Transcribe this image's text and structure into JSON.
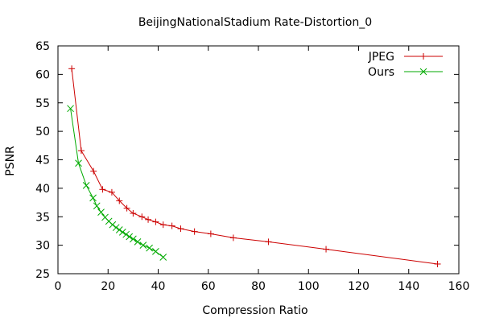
{
  "chart_data": {
    "type": "line",
    "title": "BeijingNationalStadium Rate-Distortion_0",
    "xlabel": "Compression Ratio",
    "ylabel": "PSNR",
    "xlim": [
      0,
      160
    ],
    "ylim": [
      25,
      65
    ],
    "xticks": [
      0,
      20,
      40,
      60,
      80,
      100,
      120,
      140,
      160
    ],
    "yticks": [
      25,
      30,
      35,
      40,
      45,
      50,
      55,
      60,
      65
    ],
    "grid": false,
    "legend_position": "top-right",
    "series": [
      {
        "name": "JPEG",
        "color": "#cc0000",
        "marker": "plus",
        "points": [
          [
            5.5,
            61.0
          ],
          [
            9.3,
            46.6
          ],
          [
            14.2,
            43.0
          ],
          [
            17.8,
            39.8
          ],
          [
            21.5,
            39.3
          ],
          [
            24.5,
            37.8
          ],
          [
            27.5,
            36.5
          ],
          [
            30.0,
            35.6
          ],
          [
            33.5,
            35.0
          ],
          [
            36.0,
            34.5
          ],
          [
            39.0,
            34.1
          ],
          [
            42.0,
            33.6
          ],
          [
            45.5,
            33.4
          ],
          [
            49.0,
            32.9
          ],
          [
            54.5,
            32.4
          ],
          [
            61.0,
            32.0
          ],
          [
            70.0,
            31.3
          ],
          [
            84.0,
            30.6
          ],
          [
            107.0,
            29.3
          ],
          [
            151.5,
            26.7
          ]
        ]
      },
      {
        "name": "Ours",
        "color": "#00aa00",
        "marker": "cross",
        "points": [
          [
            5.0,
            54.0
          ],
          [
            8.2,
            44.4
          ],
          [
            11.3,
            40.5
          ],
          [
            14.0,
            38.3
          ],
          [
            15.5,
            36.9
          ],
          [
            17.2,
            35.8
          ],
          [
            18.8,
            34.9
          ],
          [
            20.3,
            34.2
          ],
          [
            21.8,
            33.6
          ],
          [
            23.2,
            33.1
          ],
          [
            24.5,
            32.7
          ],
          [
            25.8,
            32.3
          ],
          [
            27.2,
            31.9
          ],
          [
            28.5,
            31.5
          ],
          [
            30.0,
            31.1
          ],
          [
            31.8,
            30.6
          ],
          [
            34.0,
            30.0
          ],
          [
            36.5,
            29.5
          ],
          [
            39.0,
            28.9
          ],
          [
            42.0,
            27.9
          ]
        ]
      }
    ]
  }
}
